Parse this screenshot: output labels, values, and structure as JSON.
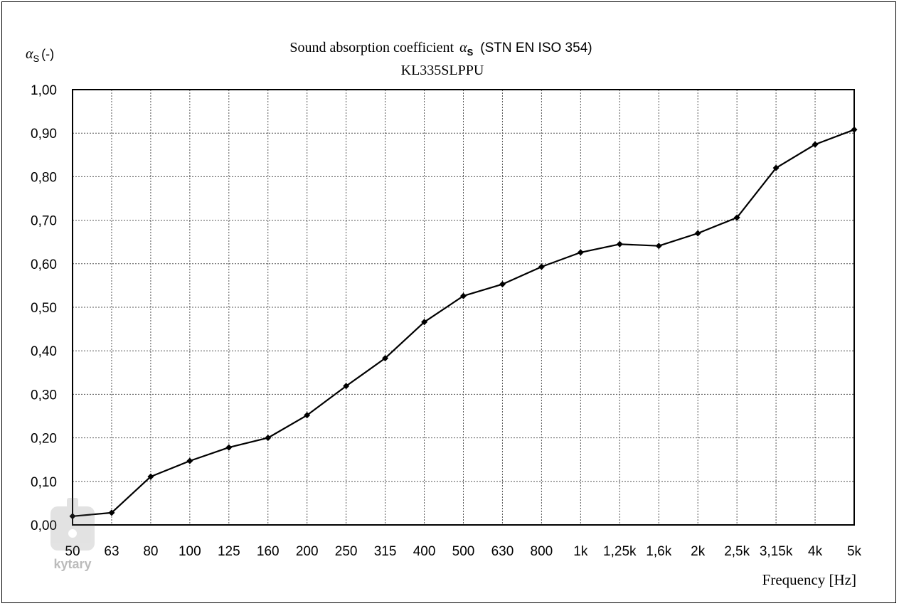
{
  "chart_data": {
    "type": "line",
    "title_main": "Sound absorption coefficient",
    "title_symbol": "α",
    "title_symbol_sub": "S",
    "title_std": "(STN EN ISO 354)",
    "subtitle": "KL335SLPPU",
    "ylabel_symbol": "α",
    "ylabel_sub": "S",
    "ylabel_unit": "(-)",
    "xlabel": "Frequency [Hz]",
    "ylim": [
      0,
      1
    ],
    "y_ticks": [
      "0,00",
      "0,10",
      "0,20",
      "0,30",
      "0,40",
      "0,50",
      "0,60",
      "0,70",
      "0,80",
      "0,90",
      "1,00"
    ],
    "categories": [
      "50",
      "63",
      "80",
      "100",
      "125",
      "160",
      "200",
      "250",
      "315",
      "400",
      "500",
      "630",
      "800",
      "1k",
      "1,25k",
      "1,6k",
      "2k",
      "2,5k",
      "3,15k",
      "4k",
      "5k"
    ],
    "series": [
      {
        "values": [
          0.02,
          0.028,
          0.111,
          0.147,
          0.178,
          0.2,
          0.252,
          0.319,
          0.383,
          0.466,
          0.526,
          0.553,
          0.593,
          0.626,
          0.645,
          0.641,
          0.67,
          0.706,
          0.82,
          0.874,
          0.908
        ]
      }
    ],
    "grid": true,
    "grid_style": "dotted",
    "line_color": "#000000",
    "marker": "diamond"
  },
  "watermark": {
    "text": "kytary"
  }
}
